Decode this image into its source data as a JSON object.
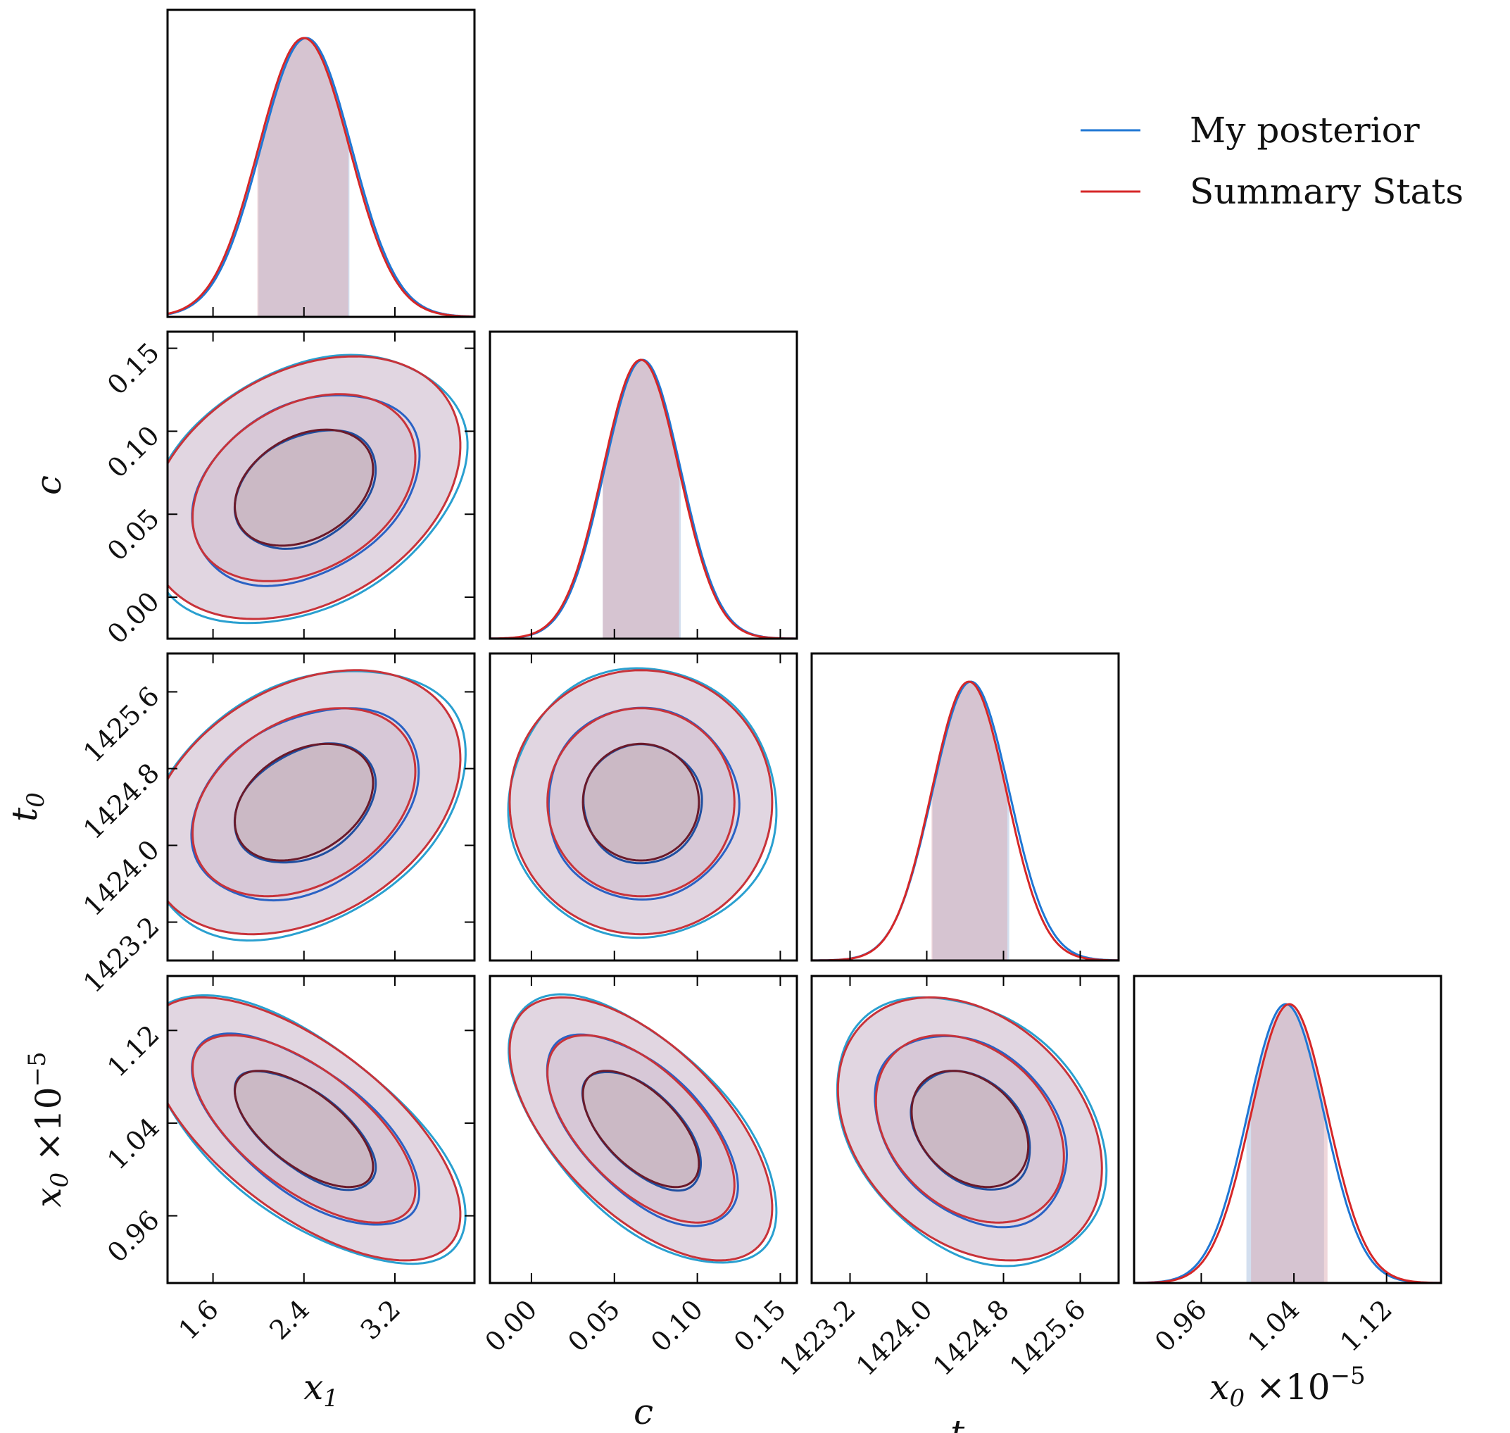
{
  "chart_data": {
    "type": "corner",
    "legend": {
      "placement": "top-right",
      "entries": [
        {
          "name": "My posterior",
          "color": "#1f77d4"
        },
        {
          "name": "Summary Stats",
          "color": "#d62728"
        }
      ]
    },
    "series_colors": {
      "fill": "#c9b5c9",
      "inner_fill": "#b8a3ab",
      "outer_line": "#2aa0d0",
      "inner_line": "#6b1a2a"
    },
    "parameters": [
      {
        "key": "x1",
        "symbol": "x",
        "sub": "1",
        "suffix": "",
        "range": [
          1.2,
          3.9
        ],
        "ticks": [
          1.6,
          2.4,
          3.2
        ],
        "tick_labels": [
          "1.6",
          "2.4",
          "3.2"
        ],
        "mean": 2.4,
        "sigma": 0.4
      },
      {
        "key": "c",
        "symbol": "c",
        "sub": "",
        "suffix": "",
        "range": [
          -0.025,
          0.16
        ],
        "ticks": [
          0.0,
          0.05,
          0.1,
          0.15
        ],
        "tick_labels": [
          "0.00",
          "0.05",
          "0.10",
          "0.15"
        ],
        "mean": 0.066,
        "sigma": 0.023
      },
      {
        "key": "t0",
        "symbol": "t",
        "sub": "0",
        "suffix": "",
        "range": [
          1422.8,
          1426.0
        ],
        "ticks": [
          1423.2,
          1424.0,
          1424.8,
          1425.6
        ],
        "tick_labels": [
          "1423.2",
          "1424.0",
          "1424.8",
          "1425.6"
        ],
        "mean": 1424.45,
        "sigma": 0.4
      },
      {
        "key": "x0",
        "symbol": "x",
        "sub": "0",
        "suffix": "×10",
        "sup": "−5",
        "range": [
          0.902,
          1.167
        ],
        "ticks": [
          0.96,
          1.04,
          1.12
        ],
        "tick_labels": [
          "0.96",
          "1.04",
          "1.12"
        ],
        "mean": 1.035,
        "sigma": 0.033
      }
    ],
    "diagonal_1d": [
      {
        "param": "x1",
        "series": [
          {
            "name": "My posterior",
            "mean": 2.42,
            "sigma": 0.4,
            "shade": [
              2.0,
              2.8
            ]
          },
          {
            "name": "Summary Stats",
            "mean": 2.4,
            "sigma": 0.4,
            "shade": [
              1.99,
              2.79
            ]
          }
        ]
      },
      {
        "param": "c",
        "series": [
          {
            "name": "My posterior",
            "mean": 0.067,
            "sigma": 0.023,
            "shade": [
              0.043,
              0.09
            ]
          },
          {
            "name": "Summary Stats",
            "mean": 0.066,
            "sigma": 0.023,
            "shade": [
              0.043,
              0.089
            ]
          }
        ]
      },
      {
        "param": "t0",
        "series": [
          {
            "name": "My posterior",
            "mean": 1424.46,
            "sigma": 0.4,
            "shade": [
              1424.06,
              1424.86
            ]
          },
          {
            "name": "Summary Stats",
            "mean": 1424.44,
            "sigma": 0.39,
            "shade": [
              1424.05,
              1424.84
            ]
          }
        ]
      },
      {
        "param": "x0",
        "series": [
          {
            "name": "My posterior",
            "mean": 1.033,
            "sigma": 0.033,
            "shade": [
              0.999,
              1.066
            ]
          },
          {
            "name": "Summary Stats",
            "mean": 1.036,
            "sigma": 0.033,
            "shade": [
              1.003,
              1.069
            ]
          }
        ]
      }
    ],
    "pairs_2d": [
      {
        "x": "x1",
        "y": "c",
        "rho": 0.32
      },
      {
        "x": "x1",
        "y": "t0",
        "rho": 0.33
      },
      {
        "x": "c",
        "y": "t0",
        "rho": 0.0
      },
      {
        "x": "x1",
        "y": "x0",
        "rho": -0.65
      },
      {
        "x": "c",
        "y": "x0",
        "rho": -0.6
      },
      {
        "x": "t0",
        "y": "x0",
        "rho": -0.3
      }
    ],
    "contour_levels_sigma": [
      1,
      2,
      3
    ],
    "grid": false
  }
}
